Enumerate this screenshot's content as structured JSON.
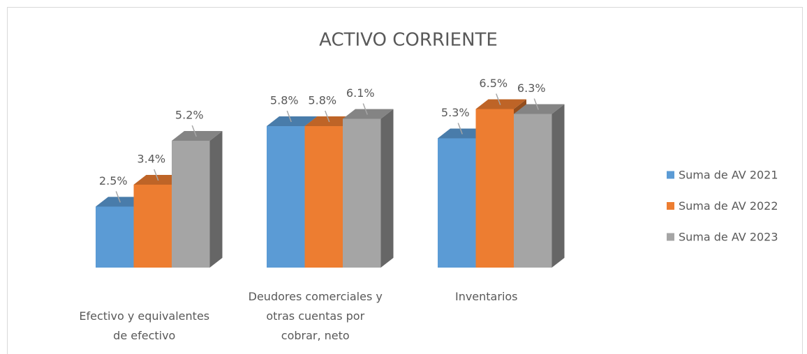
{
  "chart_data": {
    "type": "bar3d",
    "title": "ACTIVO CORRIENTE",
    "categories": [
      "Efectivo y equivalentes de efectivo",
      "Deudores comerciales y otras cuentas por cobrar, neto",
      "Inventarios"
    ],
    "series": [
      {
        "name": "Suma de AV 2021",
        "color": "#5b9bd5",
        "values": [
          2.5,
          5.8,
          5.3
        ],
        "value_labels": [
          "2.5%",
          "5.8%",
          "5.3%"
        ]
      },
      {
        "name": "Suma de AV 2022",
        "color": "#ed7d31",
        "values": [
          3.4,
          5.8,
          6.5
        ],
        "value_labels": [
          "3.4%",
          "5.8%",
          "6.5%"
        ]
      },
      {
        "name": "Suma de AV 2023",
        "color": "#a5a5a5",
        "values": [
          5.2,
          6.1,
          6.3
        ],
        "value_labels": [
          "5.2%",
          "6.1%",
          "6.3%"
        ]
      }
    ],
    "legend": "right"
  }
}
